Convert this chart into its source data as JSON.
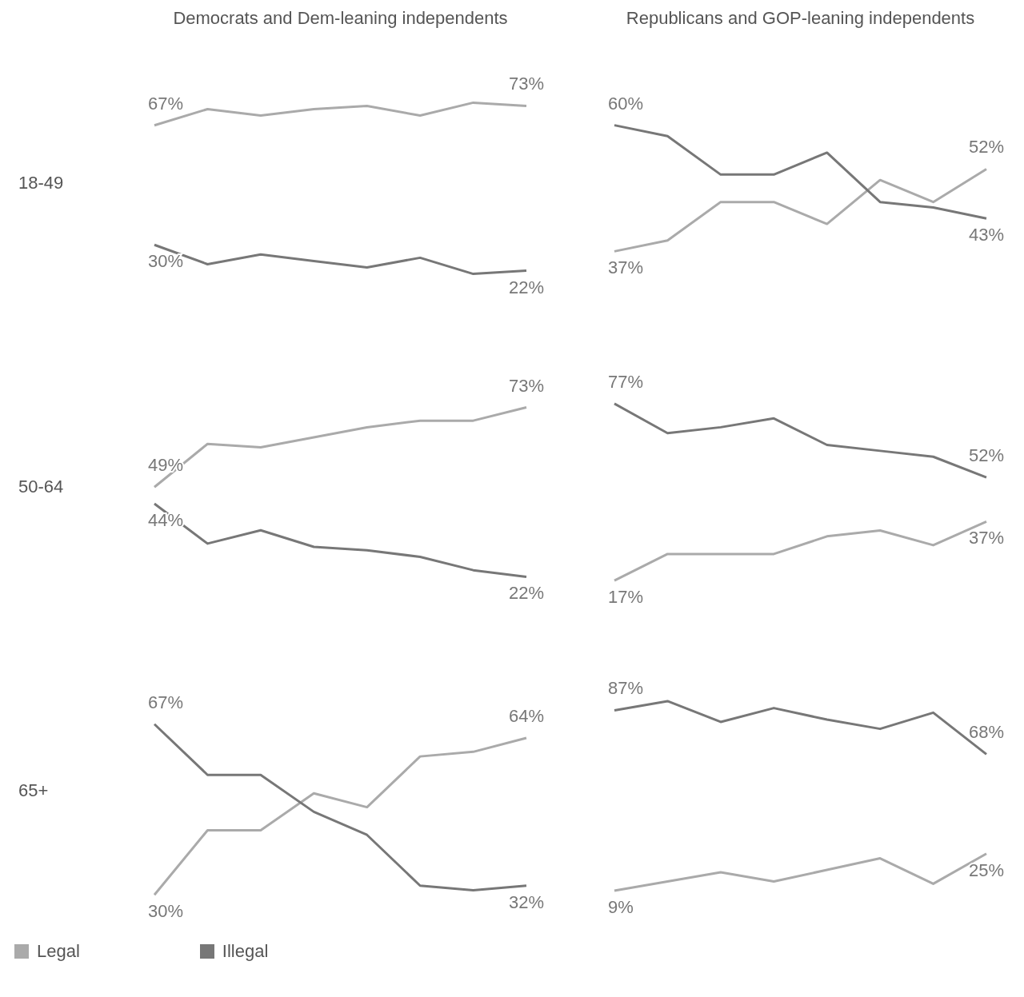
{
  "chart_data": [
    {
      "type": "line",
      "title": "Democrats and Dem-leaning independents",
      "ylabel": "18-49",
      "tick_labels": false,
      "categories": [
        null,
        null,
        null,
        null,
        null,
        null,
        null,
        null
      ],
      "series": [
        {
          "color": "#aaaaaa",
          "values": [
            67,
            72,
            70,
            72,
            73,
            70,
            74,
            73
          ],
          "value_labels": [
            "67%",
            null,
            null,
            null,
            null,
            null,
            null,
            "73%"
          ]
        },
        {
          "color": "#777777",
          "values": [
            30,
            24,
            27,
            25,
            23,
            26,
            21,
            22
          ],
          "value_labels": [
            "30%",
            null,
            null,
            null,
            null,
            null,
            null,
            "22%"
          ]
        }
      ]
    },
    {
      "type": "line",
      "title": "Republicans and GOP-leaning independents",
      "tick_labels": false,
      "categories": [
        null,
        null,
        null,
        null,
        null,
        null,
        null,
        null
      ],
      "series": [
        {
          "color": "#aaaaaa",
          "values": [
            37,
            39,
            46,
            46,
            42,
            50,
            46,
            52
          ],
          "value_labels": [
            "37%",
            null,
            null,
            null,
            null,
            null,
            null,
            "52%"
          ]
        },
        {
          "color": "#777777",
          "values": [
            60,
            58,
            51,
            51,
            55,
            46,
            45,
            43
          ],
          "value_labels": [
            "60%",
            null,
            null,
            null,
            null,
            null,
            null,
            "43%"
          ]
        }
      ]
    },
    {
      "type": "line",
      "ylabel": "50-64",
      "tick_labels": false,
      "categories": [
        null,
        null,
        null,
        null,
        null,
        null,
        null,
        null
      ],
      "series": [
        {
          "color": "#aaaaaa",
          "values": [
            49,
            62,
            61,
            64,
            67,
            69,
            69,
            73
          ],
          "value_labels": [
            "49%",
            null,
            null,
            null,
            null,
            null,
            null,
            "73%"
          ]
        },
        {
          "color": "#777777",
          "values": [
            44,
            32,
            36,
            31,
            30,
            28,
            24,
            22
          ],
          "value_labels": [
            "44%",
            null,
            null,
            null,
            null,
            null,
            null,
            "22%"
          ]
        }
      ]
    },
    {
      "type": "line",
      "tick_labels": false,
      "categories": [
        null,
        null,
        null,
        null,
        null,
        null,
        null,
        null
      ],
      "series": [
        {
          "color": "#aaaaaa",
          "values": [
            17,
            26,
            26,
            26,
            32,
            34,
            29,
            37
          ],
          "value_labels": [
            "17%",
            null,
            null,
            null,
            null,
            null,
            null,
            "37%"
          ]
        },
        {
          "color": "#777777",
          "values": [
            77,
            67,
            69,
            72,
            63,
            61,
            59,
            52
          ],
          "value_labels": [
            "77%",
            null,
            null,
            null,
            null,
            null,
            null,
            "52%"
          ]
        }
      ]
    },
    {
      "type": "line",
      "ylabel": "65+",
      "tick_labels": false,
      "legend": "bottom",
      "categories": [
        null,
        null,
        null,
        null,
        null,
        null,
        null,
        null
      ],
      "series": [
        {
          "name": "Legal",
          "color": "#aaaaaa",
          "values": [
            30,
            44,
            44,
            52,
            49,
            60,
            61,
            64
          ],
          "value_labels": [
            "30%",
            null,
            null,
            null,
            null,
            null,
            null,
            "64%"
          ]
        },
        {
          "name": "Illegal",
          "color": "#777777",
          "values": [
            67,
            56,
            56,
            48,
            43,
            32,
            31,
            32
          ],
          "value_labels": [
            "67%",
            null,
            null,
            null,
            null,
            null,
            null,
            "32%"
          ]
        }
      ]
    },
    {
      "type": "line",
      "tick_labels": false,
      "categories": [
        null,
        null,
        null,
        null,
        null,
        null,
        null,
        null
      ],
      "series": [
        {
          "color": "#aaaaaa",
          "values": [
            9,
            13,
            17,
            13,
            18,
            23,
            12,
            25
          ],
          "value_labels": [
            "9%",
            null,
            null,
            null,
            null,
            null,
            null,
            "25%"
          ]
        },
        {
          "color": "#777777",
          "values": [
            87,
            91,
            82,
            88,
            83,
            79,
            86,
            68
          ],
          "value_labels": [
            "87%",
            null,
            null,
            null,
            null,
            null,
            null,
            "68%"
          ]
        }
      ]
    }
  ]
}
